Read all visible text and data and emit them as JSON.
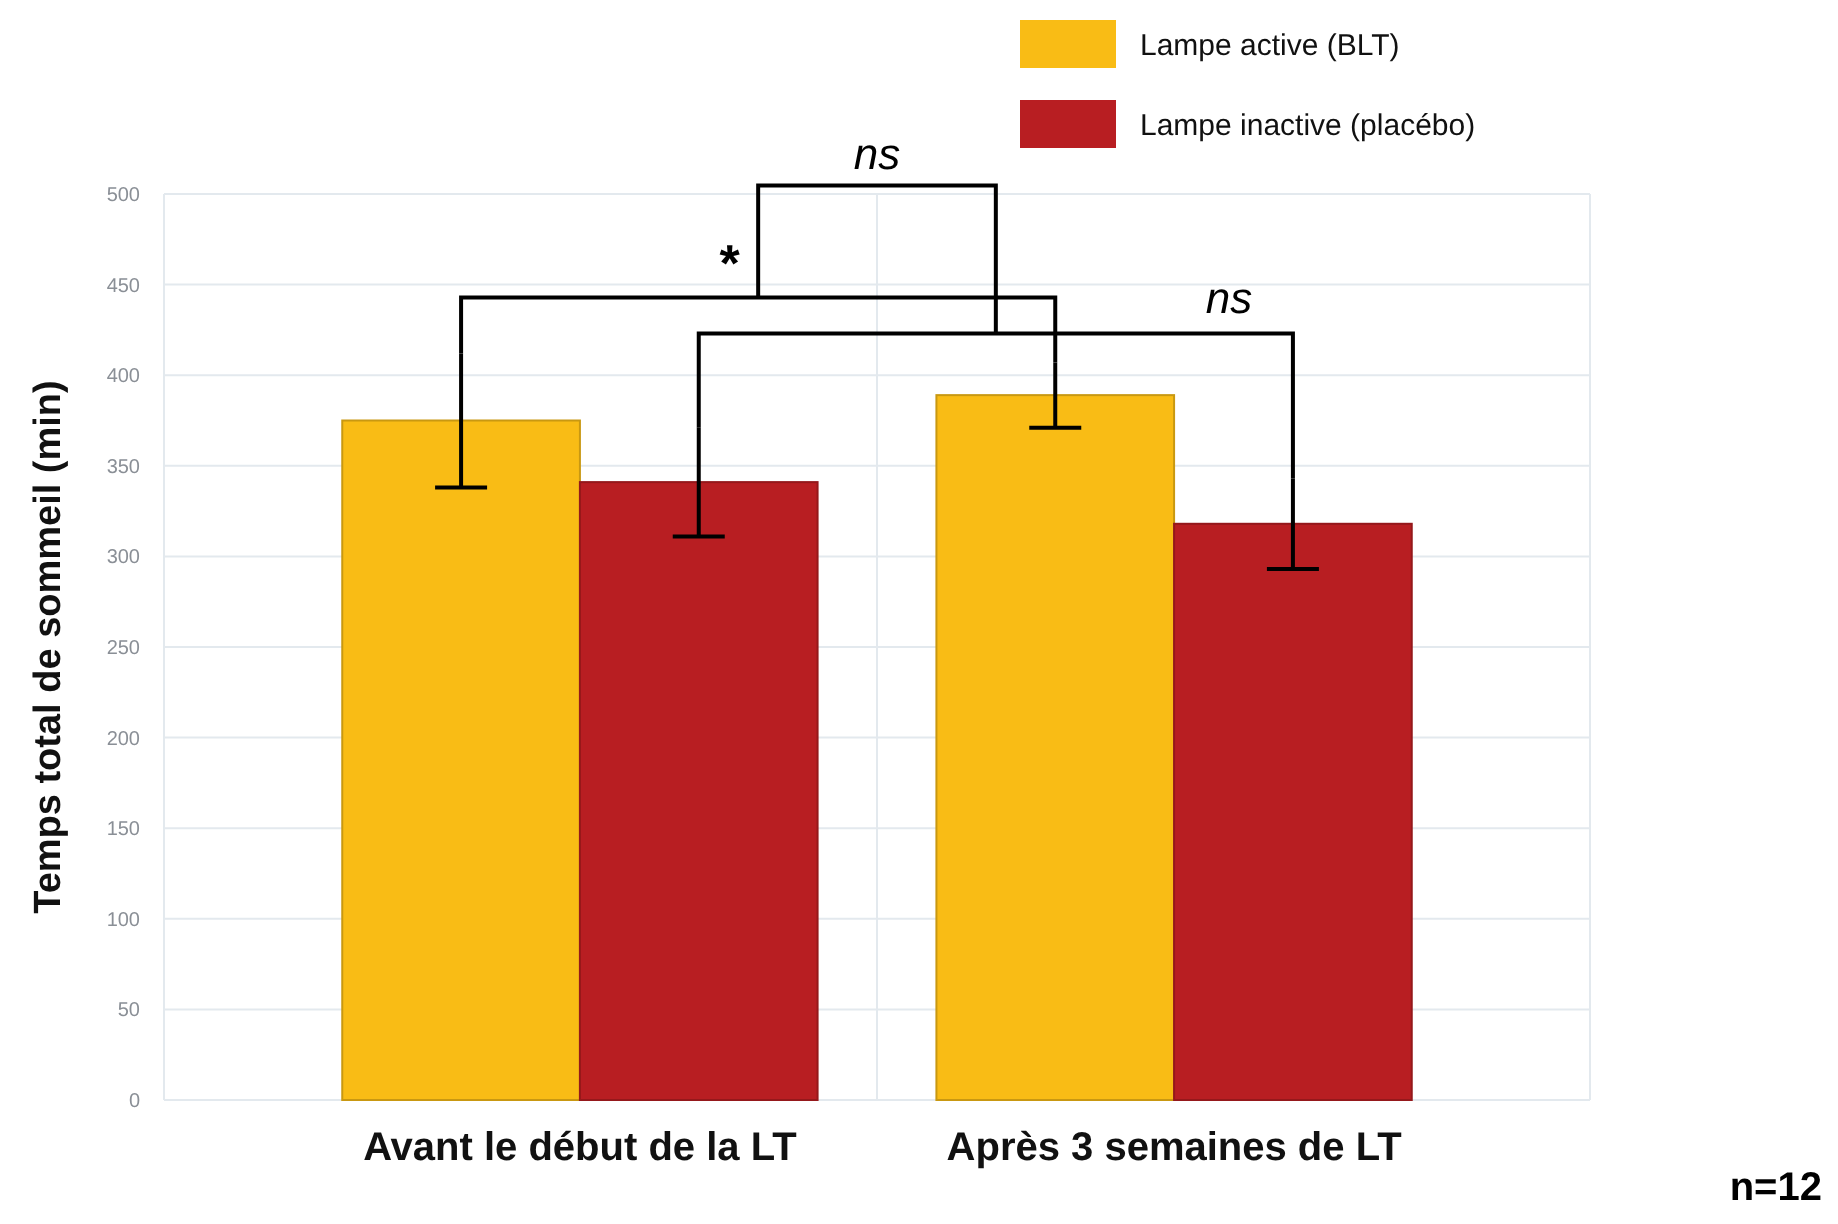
{
  "chart_data": {
    "type": "bar",
    "ylabel": "Temps total de sommeil (min)",
    "categories": [
      "Avant le début de la LT",
      "Après 3 semaines de LT"
    ],
    "series": [
      {
        "name": "Lampe active (BLT)",
        "color": "#f9bc15",
        "values": [
          375,
          389
        ],
        "errors": [
          37,
          18
        ]
      },
      {
        "name": "Lampe inactive (placébo)",
        "color": "#b81e22",
        "values": [
          341,
          318
        ],
        "errors": [
          30,
          25
        ]
      }
    ],
    "ylim": [
      0,
      500
    ],
    "yticks": [
      0,
      50,
      100,
      150,
      200,
      250,
      300,
      350,
      400,
      450,
      500
    ],
    "grid": true,
    "legend": "top right",
    "annotations": [
      "*",
      "ns",
      "ns",
      "n=12"
    ]
  }
}
